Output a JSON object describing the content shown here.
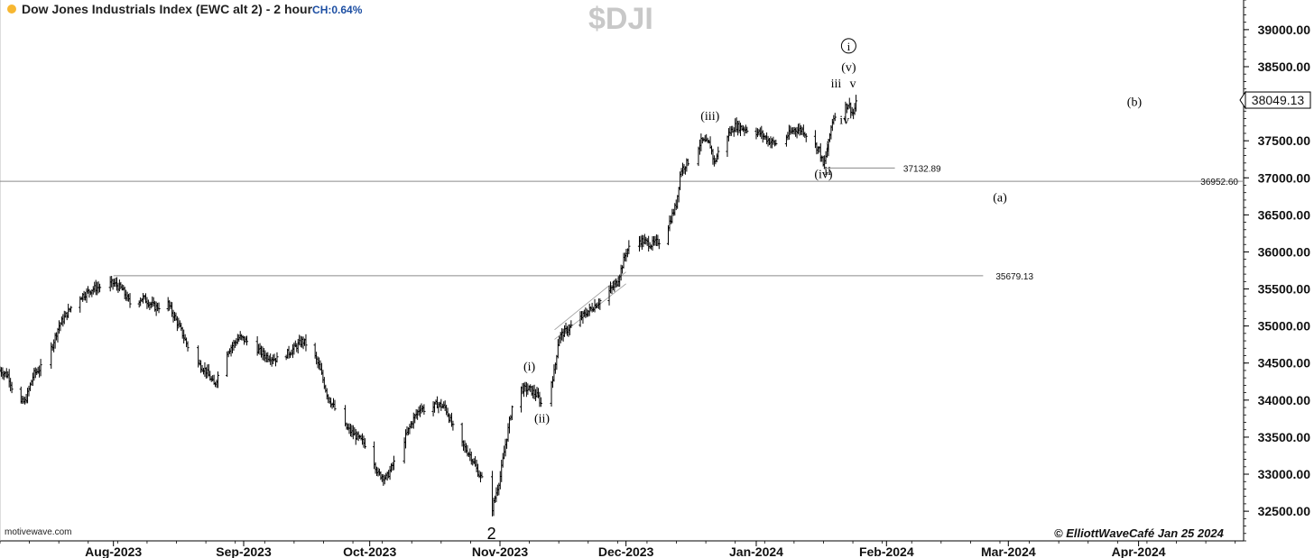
{
  "header": {
    "title": "Dow Jones Industrials Index (EWC alt 2) - 2 hour",
    "change": "CH:0.64%",
    "symbol": "$DJI"
  },
  "footer": {
    "source": "motivewave.com",
    "copyright": "© ElliottWaveCafé Jan 25 2024"
  },
  "colors": {
    "bars": "#000000",
    "hline": "#888888",
    "price_box": "#000000",
    "status_dot": "#f7b731",
    "change_text": "#1d4fa3"
  },
  "chart_data": {
    "type": "ohlc",
    "title": "Dow Jones Industrials Index (EWC alt 2) - 2 hour",
    "ylim": [
      32100,
      39400
    ],
    "y_ticks": [
      "32500.00",
      "33000.00",
      "33500.00",
      "34000.00",
      "34500.00",
      "35000.00",
      "35500.00",
      "36000.00",
      "36500.00",
      "37000.00",
      "37500.00",
      "38000.00",
      "38500.00",
      "39000.00"
    ],
    "x_ticks": [
      {
        "label": "Aug-2023",
        "x": "2023-08-01"
      },
      {
        "label": "Sep-2023",
        "x": "2023-09-01"
      },
      {
        "label": "Oct-2023",
        "x": "2023-10-01"
      },
      {
        "label": "Nov-2023",
        "x": "2023-11-01"
      },
      {
        "label": "Dec-2023",
        "x": "2023-12-01"
      },
      {
        "label": "Jan-2024",
        "x": "2024-01-01"
      },
      {
        "label": "Feb-2024",
        "x": "2024-02-01"
      },
      {
        "label": "Mar-2024",
        "x": "2024-03-01"
      },
      {
        "label": "Apr-2024",
        "x": "2024-04-01"
      }
    ],
    "xlim": [
      "2023-07-05",
      "2024-04-26"
    ],
    "last_price": "38049.13",
    "price_path": [
      [
        "2023-07-05",
        34400
      ],
      [
        "2023-07-07",
        34330
      ],
      [
        "2023-07-09",
        33950
      ],
      [
        "2023-07-11",
        33980
      ],
      [
        "2023-07-13",
        34350
      ],
      [
        "2023-07-16",
        34500
      ],
      [
        "2023-07-19",
        35000
      ],
      [
        "2023-07-23",
        35350
      ],
      [
        "2023-07-27",
        35500
      ],
      [
        "2023-08-01",
        35580
      ],
      [
        "2023-08-03",
        35500
      ],
      [
        "2023-08-05",
        35300
      ],
      [
        "2023-08-08",
        35380
      ],
      [
        "2023-08-11",
        35250
      ],
      [
        "2023-08-14",
        35300
      ],
      [
        "2023-08-17",
        34950
      ],
      [
        "2023-08-20",
        34550
      ],
      [
        "2023-08-23",
        34400
      ],
      [
        "2023-08-25",
        34200
      ],
      [
        "2023-08-28",
        34650
      ],
      [
        "2023-08-31",
        34850
      ],
      [
        "2023-09-03",
        34750
      ],
      [
        "2023-09-06",
        34600
      ],
      [
        "2023-09-09",
        34550
      ],
      [
        "2023-09-12",
        34650
      ],
      [
        "2023-09-15",
        34800
      ],
      [
        "2023-09-17",
        34700
      ],
      [
        "2023-09-19",
        34450
      ],
      [
        "2023-09-21",
        34050
      ],
      [
        "2023-09-23",
        33850
      ],
      [
        "2023-09-25",
        33650
      ],
      [
        "2023-09-27",
        33550
      ],
      [
        "2023-09-29",
        33450
      ],
      [
        "2023-10-01",
        33350
      ],
      [
        "2023-10-03",
        33000
      ],
      [
        "2023-10-05",
        32950
      ],
      [
        "2023-10-08",
        33300
      ],
      [
        "2023-10-11",
        33700
      ],
      [
        "2023-10-13",
        33900
      ],
      [
        "2023-10-15",
        33850
      ],
      [
        "2023-10-17",
        33950
      ],
      [
        "2023-10-19",
        33900
      ],
      [
        "2023-10-21",
        33600
      ],
      [
        "2023-10-23",
        33400
      ],
      [
        "2023-10-25",
        33250
      ],
      [
        "2023-10-27",
        33000
      ],
      [
        "2023-10-29",
        32800
      ],
      [
        "2023-10-30",
        32500
      ],
      [
        "2023-11-01",
        32950
      ],
      [
        "2023-11-02",
        33300
      ],
      [
        "2023-11-04",
        33950
      ],
      [
        "2023-11-06",
        34150
      ],
      [
        "2023-11-08",
        34150
      ],
      [
        "2023-11-10",
        34050
      ],
      [
        "2023-11-11",
        33920
      ],
      [
        "2023-11-13",
        34200
      ],
      [
        "2023-11-14",
        34400
      ],
      [
        "2023-11-15",
        34850
      ],
      [
        "2023-11-17",
        34950
      ],
      [
        "2023-11-20",
        35100
      ],
      [
        "2023-11-23",
        35250
      ],
      [
        "2023-11-26",
        35400
      ],
      [
        "2023-11-29",
        35600
      ],
      [
        "2023-12-01",
        36000
      ],
      [
        "2023-12-03",
        36150
      ],
      [
        "2023-12-05",
        36150
      ],
      [
        "2023-12-07",
        36100
      ],
      [
        "2023-12-09",
        36150
      ],
      [
        "2023-12-11",
        36350
      ],
      [
        "2023-12-13",
        36650
      ],
      [
        "2023-12-14",
        37100
      ],
      [
        "2023-12-17",
        37300
      ],
      [
        "2023-12-19",
        37500
      ],
      [
        "2023-12-21",
        37450
      ],
      [
        "2023-12-22",
        37200
      ],
      [
        "2023-12-24",
        37500
      ],
      [
        "2023-12-27",
        37700
      ],
      [
        "2023-12-30",
        37650
      ],
      [
        "2024-01-02",
        37600
      ],
      [
        "2024-01-04",
        37500
      ],
      [
        "2024-01-06",
        37450
      ],
      [
        "2024-01-08",
        37550
      ],
      [
        "2024-01-10",
        37650
      ],
      [
        "2024-01-12",
        37650
      ],
      [
        "2024-01-14",
        37500
      ],
      [
        "2024-01-16",
        37380
      ],
      [
        "2024-01-17",
        37150
      ],
      [
        "2024-01-18",
        37400
      ],
      [
        "2024-01-19",
        37750
      ],
      [
        "2024-01-21",
        38050
      ],
      [
        "2024-01-22",
        37950
      ],
      [
        "2024-01-23",
        38000
      ],
      [
        "2024-01-24",
        37850
      ],
      [
        "2024-01-25",
        38049
      ]
    ],
    "horizontal_lines": [
      {
        "value": 36952.6,
        "label": "36952.60"
      },
      {
        "value": 35679.13,
        "label": "35679.13"
      },
      {
        "value": 37132.89,
        "label": "37132.89"
      }
    ],
    "channel": [
      {
        "from": [
          "2023-11-14",
          34820
        ],
        "to": [
          "2023-12-01",
          35570
        ]
      },
      {
        "from": [
          "2023-11-14",
          34950
        ],
        "to": [
          "2023-12-01",
          35730
        ]
      }
    ],
    "annotations": [
      {
        "label": "2",
        "x": "2023-10-30",
        "y": 32200,
        "style": "large"
      },
      {
        "label": "(i)",
        "x": "2023-11-08",
        "y": 34400,
        "style": "serif"
      },
      {
        "label": "(ii)",
        "x": "2023-11-11",
        "y": 33700,
        "style": "serif"
      },
      {
        "label": "(iii)",
        "x": "2023-12-21",
        "y": 37780,
        "style": "serif"
      },
      {
        "label": "(iv)",
        "x": "2024-01-17",
        "y": 37000,
        "style": "serif"
      },
      {
        "label": "i",
        "x": "2024-01-18",
        "y": 37380,
        "style": "serif"
      },
      {
        "label": "ii",
        "x": "2024-01-18",
        "y": 37040,
        "style": "serif"
      },
      {
        "label": "iii",
        "x": "2024-01-20",
        "y": 38220,
        "style": "serif"
      },
      {
        "label": "iv",
        "x": "2024-01-22",
        "y": 37730,
        "style": "serif"
      },
      {
        "label": "v",
        "x": "2024-01-24",
        "y": 38220,
        "style": "serif"
      },
      {
        "label": "(v)",
        "x": "2024-01-23",
        "y": 38440,
        "style": "serif"
      },
      {
        "label": "i",
        "x": "2024-01-23",
        "y": 38720,
        "style": "circled"
      },
      {
        "label": "(a)",
        "x": "2024-02-28",
        "y": 36680,
        "style": "serif"
      },
      {
        "label": "(b)",
        "x": "2024-03-31",
        "y": 37970,
        "style": "serif"
      }
    ]
  }
}
